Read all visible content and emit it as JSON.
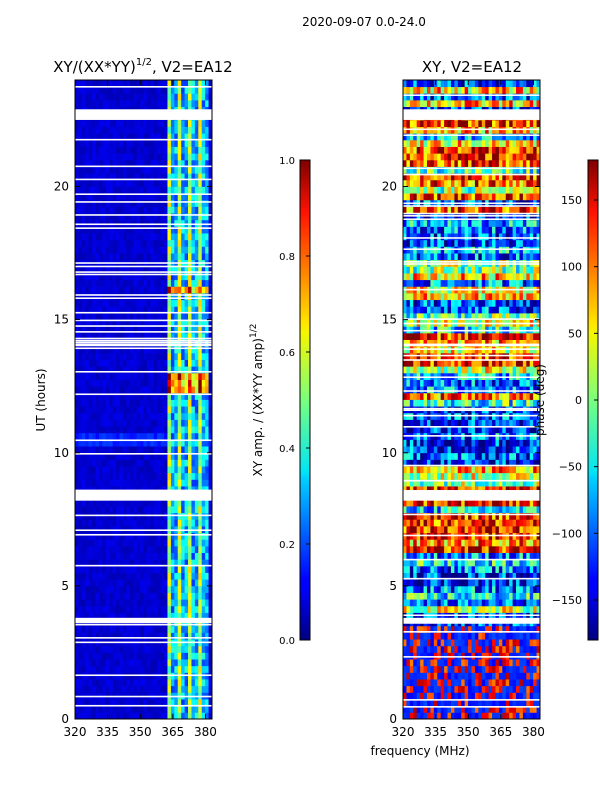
{
  "suptitle": "2020-09-07 0.0-24.0",
  "shared": {
    "xlabel": "frequency (MHz)"
  },
  "chart_data": [
    {
      "type": "heatmap",
      "title": "XY/(XX*YY)",
      "title_sup": "1/2",
      "title_suffix": ", V2=EA12",
      "ylabel": "UT (hours)",
      "xlim": [
        320,
        383
      ],
      "ylim": [
        0,
        24
      ],
      "xticks": [
        320,
        335,
        350,
        365,
        380
      ],
      "yticks": [
        0,
        5,
        10,
        15,
        20
      ],
      "colorbar": {
        "label": "XY amp. / (XX*YY amp)",
        "label_sup": "1/2",
        "range": [
          0.0,
          1.0
        ],
        "ticks": [
          0.0,
          0.2,
          0.4,
          0.6,
          0.8,
          1.0
        ],
        "tick_labels": [
          "0.0",
          "0.2",
          "0.4",
          "0.6",
          "0.8",
          "1.0"
        ],
        "colormap": "jet"
      },
      "gaps_ut_hours": [
        [
          3.6,
          3.8
        ],
        [
          8.2,
          8.6
        ],
        [
          14.0,
          14.1
        ],
        [
          22.5,
          22.9
        ]
      ]
    },
    {
      "type": "heatmap",
      "title": "XY, V2=EA12",
      "ylabel": "",
      "xlim": [
        320,
        383
      ],
      "ylim": [
        0,
        24
      ],
      "xticks": [
        320,
        335,
        350,
        365,
        380
      ],
      "yticks": [
        0,
        5,
        10,
        15,
        20
      ],
      "colorbar": {
        "label": "phase (deg)",
        "range": [
          -180,
          180
        ],
        "ticks": [
          -150,
          -100,
          -50,
          0,
          50,
          100,
          150
        ],
        "tick_labels": [
          "−150",
          "−100",
          "−50",
          "0",
          "50",
          "100",
          "150"
        ],
        "colormap": "jet"
      },
      "gaps_ut_hours": [
        [
          3.6,
          3.8
        ],
        [
          8.2,
          8.6
        ],
        [
          14.0,
          14.1
        ],
        [
          22.5,
          22.9
        ]
      ]
    }
  ]
}
